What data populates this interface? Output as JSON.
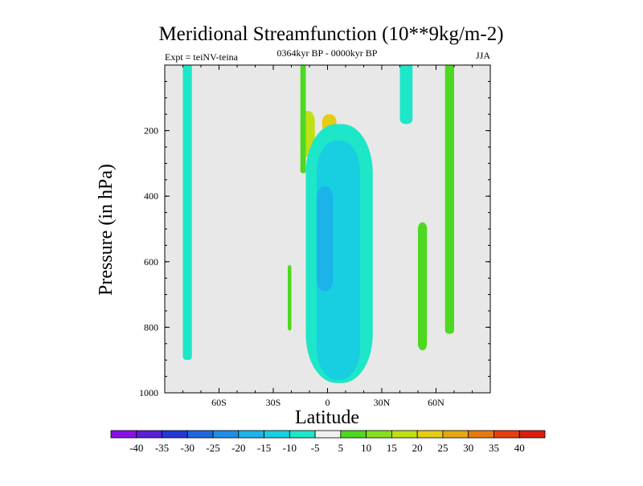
{
  "chart_data": {
    "type": "contour",
    "title": "Meridional Streamfunction (10**9kg/m-2)",
    "left_label": "Expt = teiNV-teina",
    "center_label": "0364kyr BP - 0000kyr BP",
    "right_label": "JJA",
    "xlabel": "Latitude",
    "ylabel": "Pressure (in hPa)",
    "x_range": [
      -90,
      90
    ],
    "y_range": [
      1000,
      0
    ],
    "x_ticks": [
      {
        "value": -60,
        "label": "60S"
      },
      {
        "value": -30,
        "label": "30S"
      },
      {
        "value": 0,
        "label": "0"
      },
      {
        "value": 30,
        "label": "30N"
      },
      {
        "value": 60,
        "label": "60N"
      }
    ],
    "y_ticks": [
      {
        "value": 200,
        "label": "200"
      },
      {
        "value": 400,
        "label": "400"
      },
      {
        "value": 600,
        "label": "600"
      },
      {
        "value": 800,
        "label": "800"
      },
      {
        "value": 1000,
        "label": "1000"
      }
    ],
    "colorbar": {
      "labels": [
        "-40",
        "-35",
        "-30",
        "-25",
        "-20",
        "-15",
        "-10",
        "-5",
        "5",
        "10",
        "15",
        "20",
        "25",
        "30",
        "35",
        "40"
      ],
      "colors": [
        "#8a10e8",
        "#5a1fd8",
        "#2238d8",
        "#1f66e0",
        "#1e8ee6",
        "#1cb2ea",
        "#17cfe0",
        "#1ee6c8",
        "#f0f0f0",
        "#4ed820",
        "#86e01e",
        "#c0e016",
        "#e6cc14",
        "#e6a812",
        "#e67a10",
        "#e6400e",
        "#d81e0c"
      ]
    },
    "regions": [
      {
        "name": "sh-high-lat-column",
        "level": -5,
        "lat": [
          -80,
          -75
        ],
        "p": [
          0,
          900
        ]
      },
      {
        "name": "equatorial-upper-core-west",
        "level": 15,
        "lat": [
          -15,
          -7
        ],
        "p": [
          140,
          280
        ]
      },
      {
        "name": "equatorial-upper-core-east",
        "level": 20,
        "lat": [
          -3,
          5
        ],
        "p": [
          150,
          210
        ]
      },
      {
        "name": "equatorial-upper-band",
        "level": 5,
        "lat": [
          -15,
          -12
        ],
        "p": [
          0,
          330
        ]
      },
      {
        "name": "tropical-cell-outer",
        "level": -5,
        "lat": [
          -12,
          25
        ],
        "p": [
          180,
          970
        ]
      },
      {
        "name": "tropical-cell-inner",
        "level": -10,
        "lat": [
          -6,
          18
        ],
        "p": [
          230,
          960
        ]
      },
      {
        "name": "tropical-cell-core",
        "level": -15,
        "lat": [
          -6,
          3
        ],
        "p": [
          370,
          690
        ]
      },
      {
        "name": "sh-subtropic-strip",
        "level": 5,
        "lat": [
          -22,
          -20
        ],
        "p": [
          610,
          810
        ]
      },
      {
        "name": "nh-upper-strip",
        "level": -5,
        "lat": [
          40,
          47
        ],
        "p": [
          0,
          180
        ]
      },
      {
        "name": "nh-midlat-strip",
        "level": 5,
        "lat": [
          50,
          55
        ],
        "p": [
          480,
          870
        ]
      },
      {
        "name": "nh-high-lat-column",
        "level": 5,
        "lat": [
          65,
          70
        ],
        "p": [
          0,
          820
        ]
      }
    ]
  }
}
